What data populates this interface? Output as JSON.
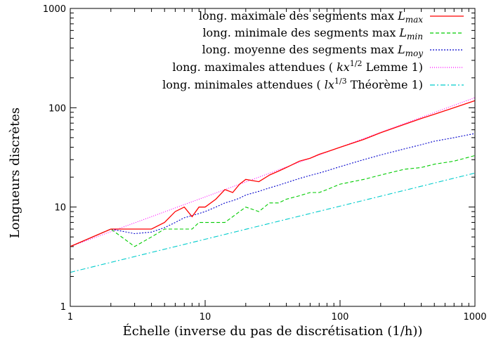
{
  "chart_data": {
    "type": "line",
    "xscale": "log",
    "yscale": "log",
    "xlim": [
      1,
      1000
    ],
    "ylim": [
      1,
      1000
    ],
    "xticks": [
      "1",
      "10",
      "100",
      "1000"
    ],
    "yticks": [
      "1",
      "10",
      "100",
      "1000"
    ],
    "xlabel": "Échelle (inverse du pas de discrétisation (1/h))",
    "ylabel": "Longueurs discrètes",
    "grid": false,
    "legend_position": "top-right",
    "series": [
      {
        "name": "long. maximale des segments max L_max",
        "legend": {
          "text": "long. maximale des segments max ",
          "math": "L",
          "sub": "max"
        },
        "color": "#ff0000",
        "dash": "",
        "x": [
          1,
          2,
          3,
          4,
          5,
          6,
          7,
          8,
          9,
          10,
          12,
          14,
          16,
          18,
          20,
          25,
          30,
          35,
          40,
          50,
          60,
          70,
          80,
          100,
          150,
          200,
          300,
          400,
          500,
          700,
          1000
        ],
        "y": [
          4,
          6,
          6,
          6,
          7,
          9,
          10,
          8,
          10,
          10,
          12,
          15,
          14,
          17,
          19,
          18,
          21,
          23,
          25,
          29,
          31,
          34,
          36,
          40,
          48,
          56,
          68,
          78,
          86,
          100,
          118
        ]
      },
      {
        "name": "long. minimale des segments max L_min",
        "legend": {
          "text": "long. minimale des segments max ",
          "math": "L",
          "sub": "min"
        },
        "color": "#00cc00",
        "dash": "5,3",
        "x": [
          1,
          2,
          3,
          4,
          5,
          6,
          7,
          8,
          9,
          10,
          12,
          14,
          16,
          18,
          20,
          25,
          30,
          35,
          40,
          50,
          60,
          70,
          80,
          100,
          150,
          200,
          300,
          400,
          500,
          700,
          1000
        ],
        "y": [
          4,
          6,
          4,
          5,
          6,
          6,
          6,
          6,
          7,
          7,
          7,
          7,
          8,
          9,
          10,
          9,
          11,
          11,
          12,
          13,
          14,
          14,
          15,
          17,
          19,
          21,
          24,
          25,
          27,
          29,
          33
        ]
      },
      {
        "name": "long. moyenne des segments max L_moy",
        "legend": {
          "text": "long. moyenne des segments max ",
          "math": "L",
          "sub": "moy"
        },
        "color": "#0000cc",
        "dash": "2,2",
        "x": [
          1,
          2,
          3,
          4,
          5,
          6,
          7,
          8,
          9,
          10,
          12,
          14,
          16,
          18,
          20,
          25,
          30,
          35,
          40,
          50,
          60,
          70,
          80,
          100,
          150,
          200,
          300,
          400,
          500,
          700,
          1000
        ],
        "y": [
          4,
          6,
          5.4,
          5.6,
          6.2,
          7,
          7.8,
          8.2,
          8.6,
          9,
          10,
          11,
          11.6,
          12.3,
          13.2,
          14.4,
          15.6,
          16.6,
          17.6,
          19.4,
          20.8,
          22,
          23.2,
          25.5,
          30,
          33.5,
          38.5,
          42.5,
          46,
          50,
          55
        ]
      },
      {
        "name": "long. maximales attendues ( kx^{1/2} Lemme 1)",
        "legend": {
          "pre": "long. maximales attendues ( ",
          "math": "kx",
          "sup": "1/2",
          "post": " Lemme 1)"
        },
        "color": "#ff00ff",
        "dash": "1,2",
        "x": [
          1,
          1000
        ],
        "y": [
          4,
          126.5
        ]
      },
      {
        "name": "long. minimales attendues ( lx^{1/3} Théorème 1)",
        "legend": {
          "pre": "long. minimales attendues ( ",
          "math": "lx",
          "sup": "1/3",
          "post": " Théorème 1)"
        },
        "color": "#00cccc",
        "dash": "7,3,2,3",
        "x": [
          1,
          1000
        ],
        "y": [
          2.2,
          22
        ]
      }
    ]
  }
}
